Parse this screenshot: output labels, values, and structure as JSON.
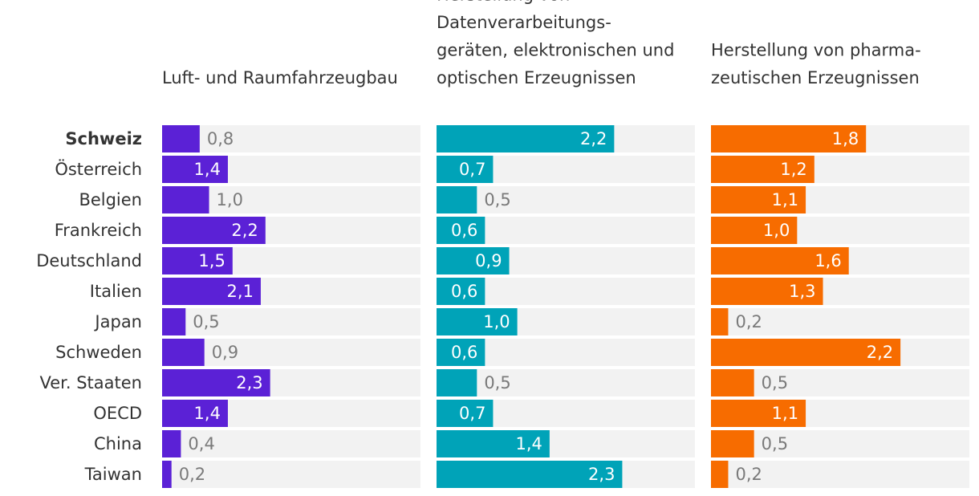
{
  "chart_data": {
    "type": "bar",
    "orientation": "horizontal",
    "categories": [
      "Schweiz",
      "Österreich",
      "Belgien",
      "Frankreich",
      "Deutschland",
      "Italien",
      "Japan",
      "Schweden",
      "Ver. Staaten",
      "OECD",
      "China",
      "Taiwan"
    ],
    "highlight_category": "Schweiz",
    "panels": [
      {
        "title": [
          "Luft- und Raumfahrzeugbau"
        ],
        "color": "#5b21d6",
        "xlim": [
          0,
          5.5
        ],
        "values": [
          0.8,
          1.4,
          1.0,
          2.2,
          1.5,
          2.1,
          0.5,
          0.9,
          2.3,
          1.4,
          0.4,
          0.2
        ],
        "labels": [
          "0,8",
          "1,4",
          "1,0",
          "2,2",
          "1,5",
          "2,1",
          "0,5",
          "0,9",
          "2,3",
          "1,4",
          "0,4",
          "0,2"
        ]
      },
      {
        "title": [
          "Herstellung von",
          "Datenverarbeitungs-",
          "geräten, elektronischen und",
          "optischen Erzeugnissen"
        ],
        "color": "#00a3b8",
        "xlim": [
          0,
          3.2
        ],
        "values": [
          2.2,
          0.7,
          0.5,
          0.6,
          0.9,
          0.6,
          1.0,
          0.6,
          0.5,
          0.7,
          1.4,
          2.3
        ],
        "labels": [
          "2,2",
          "0,7",
          "0,5",
          "0,6",
          "0,9",
          "0,6",
          "1,0",
          "0,6",
          "0,5",
          "0,7",
          "1,4",
          "2,3"
        ]
      },
      {
        "title": [
          "Herstellung von pharma-",
          "zeutischen Erzeugnissen"
        ],
        "color": "#f76c00",
        "xlim": [
          0,
          3.0
        ],
        "values": [
          1.8,
          1.2,
          1.1,
          1.0,
          1.6,
          1.3,
          0.2,
          2.2,
          0.5,
          1.1,
          0.5,
          0.2
        ],
        "labels": [
          "1,8",
          "1,2",
          "1,1",
          "1,0",
          "1,6",
          "1,3",
          "0,2",
          "2,2",
          "0,5",
          "1,1",
          "0,5",
          "0,2"
        ]
      }
    ]
  },
  "colors": {
    "track": "#f2f2f2",
    "label_inside": "#ffffff",
    "label_outside": "#7a7a7a",
    "category_text": "#333333",
    "title_text": "#333333"
  }
}
